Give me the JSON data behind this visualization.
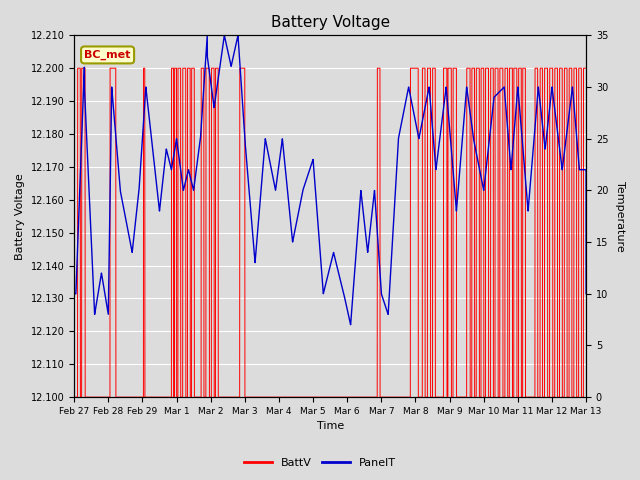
{
  "title": "Battery Voltage",
  "xlabel": "Time",
  "ylabel_left": "Battery Voltage",
  "ylabel_right": "Temperature",
  "ylim_left": [
    12.1,
    12.21
  ],
  "ylim_right": [
    0,
    35
  ],
  "bg_color": "#dcdcdc",
  "plot_bg_color": "#dcdcdc",
  "annotation_text": "BC_met",
  "annotation_color": "#cc0000",
  "annotation_bg": "#ffffcc",
  "annotation_border": "#999900",
  "grid_color": "white",
  "batt_color": "#ff0000",
  "panel_color": "#0000cc",
  "legend_batt": "BattV",
  "legend_panel": "PanelT",
  "x_tick_labels": [
    "Feb 27",
    "Feb 28",
    "Feb 29",
    "Mar 1",
    "Mar 2",
    "Mar 3",
    "Mar 4",
    "Mar 5",
    "Mar 6",
    "Mar 7",
    "Mar 8",
    "Mar 9",
    "Mar 10",
    "Mar 11",
    "Mar 12",
    "Mar 13"
  ],
  "x_tick_positions": [
    0,
    1,
    2,
    3,
    4,
    5,
    6,
    7,
    8,
    9,
    10,
    11,
    12,
    13,
    14,
    15
  ],
  "yticks_left": [
    12.1,
    12.11,
    12.12,
    12.13,
    12.14,
    12.15,
    12.16,
    12.17,
    12.18,
    12.19,
    12.2,
    12.21
  ],
  "yticks_right": [
    0,
    5,
    10,
    15,
    20,
    25,
    30,
    35
  ],
  "batt_high": 12.2,
  "batt_low": 12.1,
  "panel_t_max": 35.0,
  "panel_v_min": 12.1,
  "panel_v_range": 0.11
}
